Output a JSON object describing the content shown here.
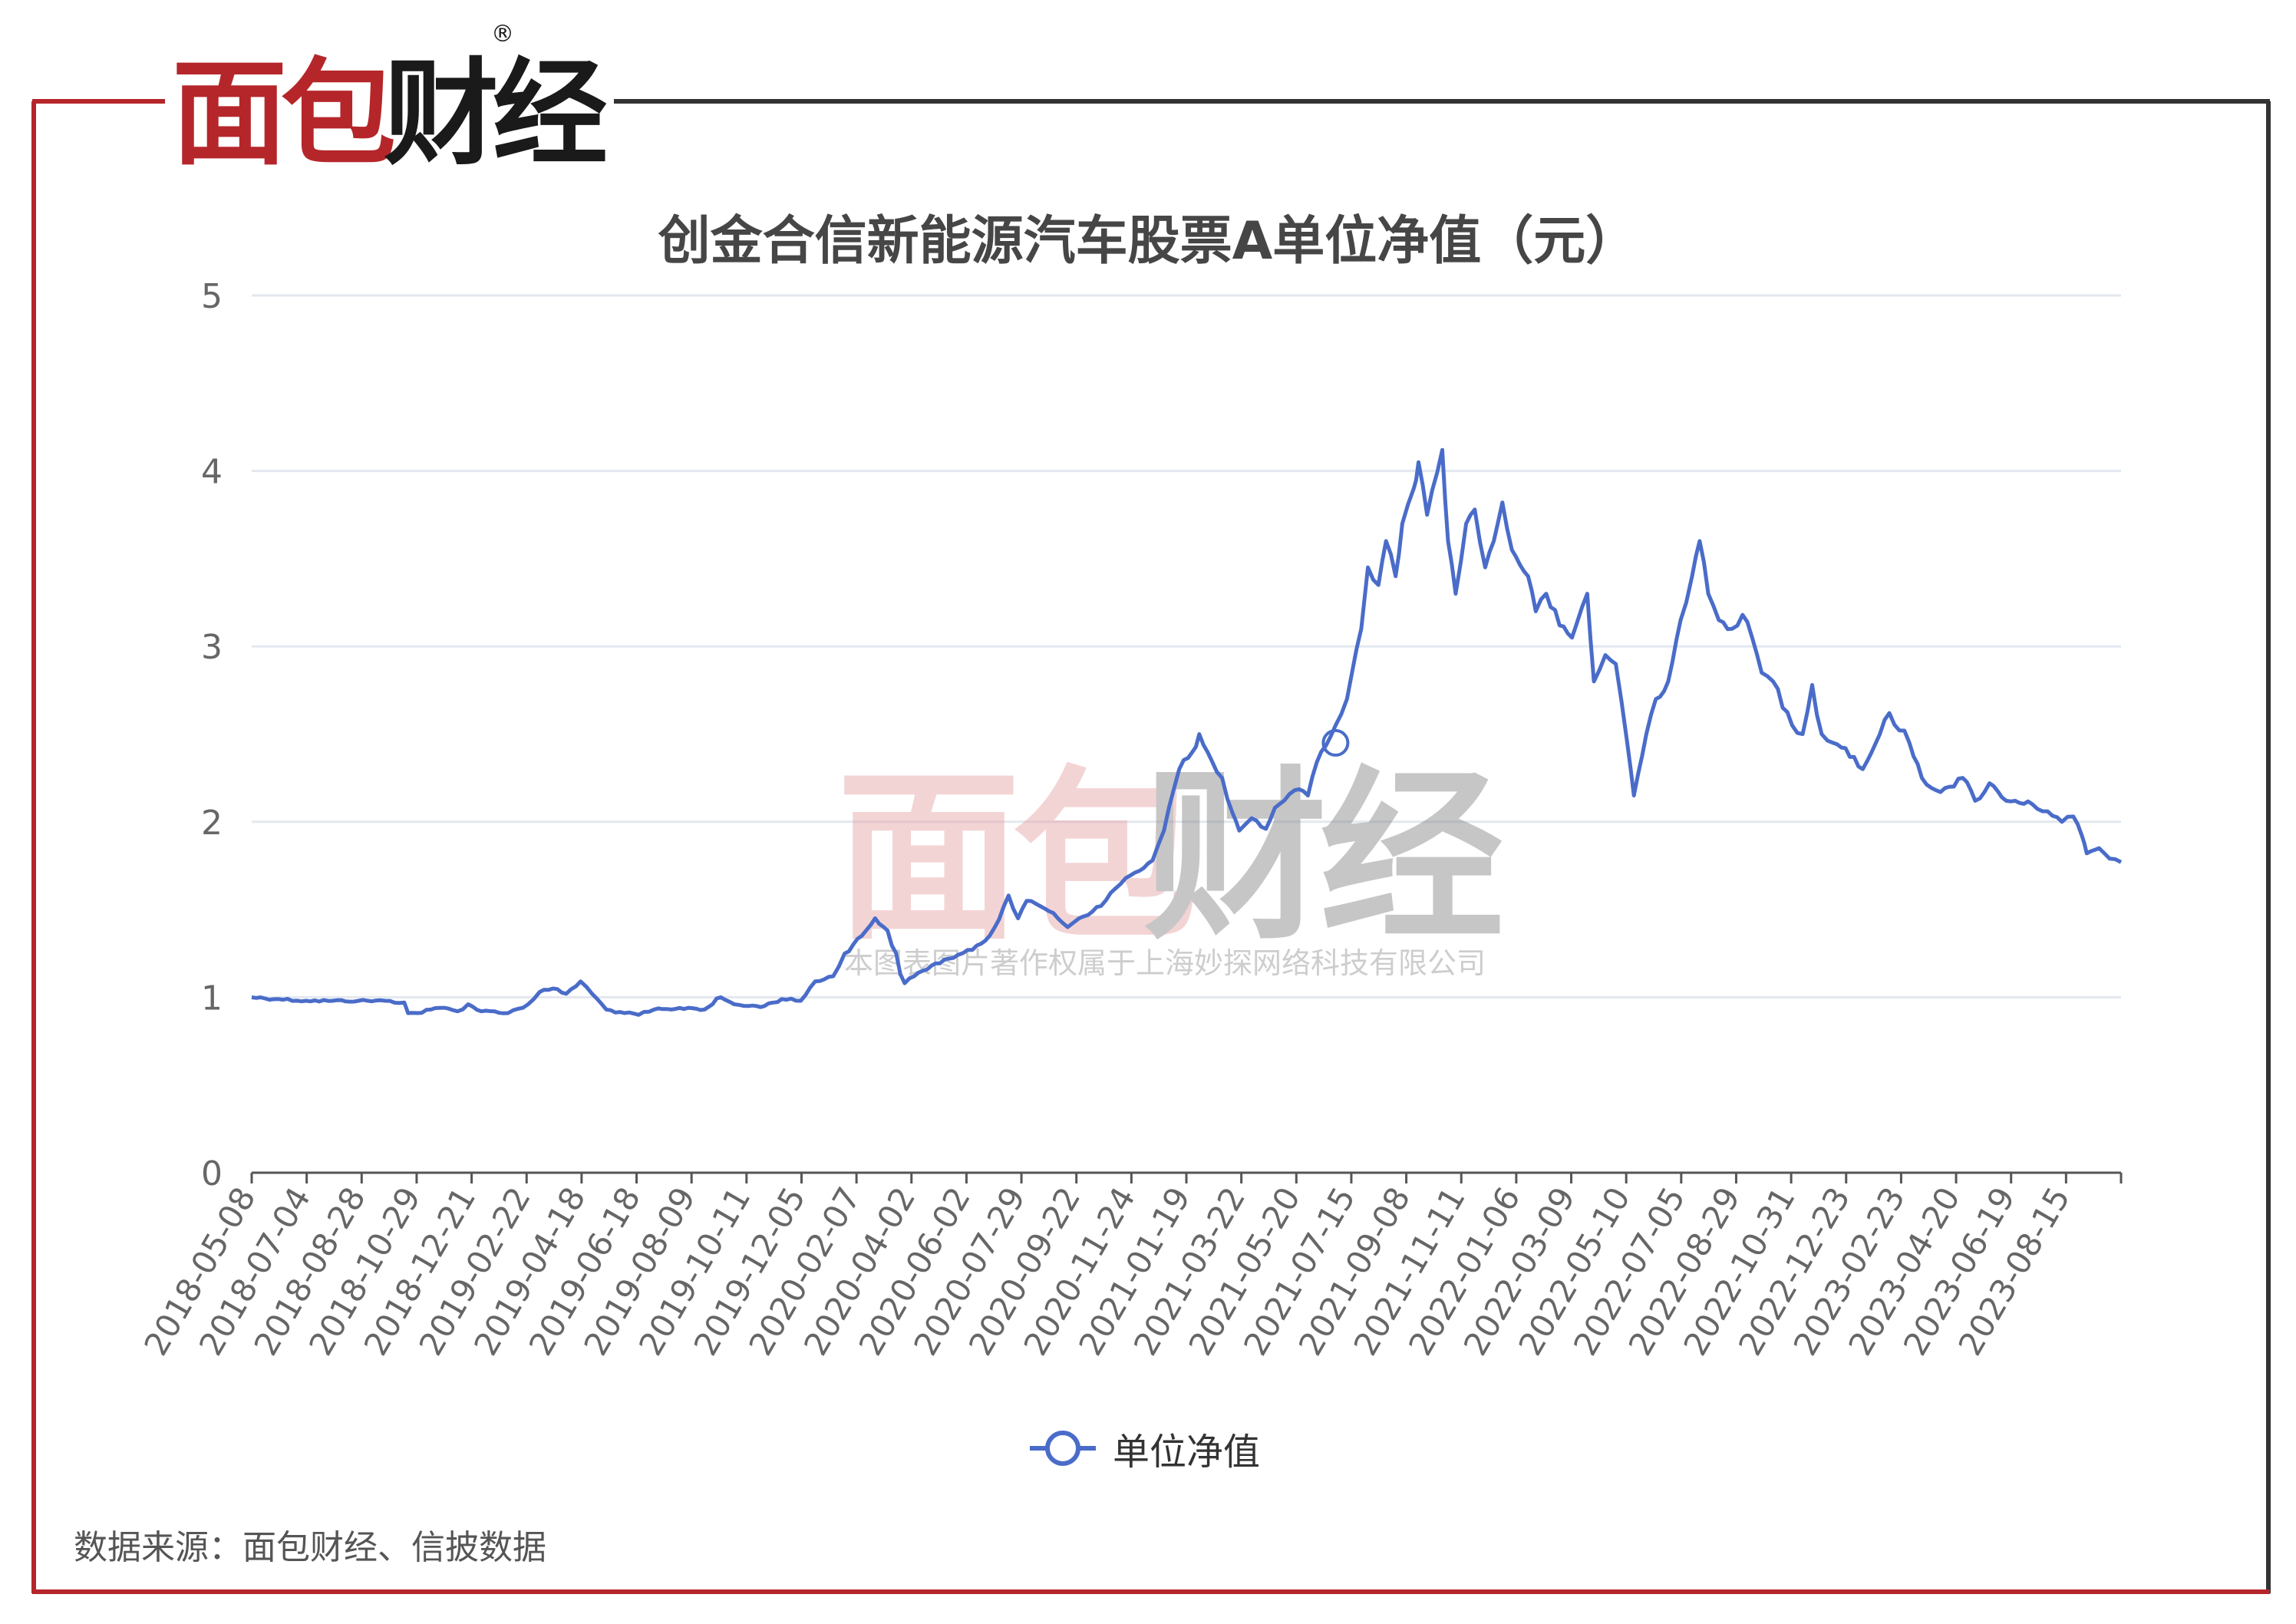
{
  "logo": {
    "text": "面包财经",
    "registered_mark": "®",
    "colors": {
      "red": "#b5262b",
      "black": "#1a1a1a"
    }
  },
  "watermark": {
    "logo_text": "面包财经",
    "copyright": "本图表图片著作权属于上海妙探网络科技有限公司"
  },
  "source_note": "数据来源：面包财经、信披数据",
  "colors": {
    "line": "#4a6cc9",
    "grid": "#e3e8f0",
    "frame_red": "#b5262b",
    "frame_dark": "#333333",
    "axis_text": "#666666"
  },
  "chart_data": {
    "type": "line",
    "title": "创金合信新能源汽车股票A单位净值（元）",
    "xlabel": "",
    "ylabel": "",
    "ylim": [
      0,
      5
    ],
    "yticks": [
      0,
      1,
      2,
      3,
      4,
      5
    ],
    "grid": true,
    "legend_position": "bottom-center",
    "xticks": [
      "2018-05-08",
      "2018-07-04",
      "2018-08-28",
      "2018-10-29",
      "2018-12-21",
      "2019-02-22",
      "2019-04-18",
      "2019-06-18",
      "2019-08-09",
      "2019-10-11",
      "2019-12-05",
      "2020-02-07",
      "2020-04-02",
      "2020-06-02",
      "2020-07-29",
      "2020-09-22",
      "2020-11-24",
      "2021-01-19",
      "2021-03-22",
      "2021-05-20",
      "2021-07-15",
      "2021-09-08",
      "2021-11-11",
      "2022-01-06",
      "2022-03-09",
      "2022-05-10",
      "2022-07-05",
      "2022-08-29",
      "2022-10-31",
      "2022-12-23",
      "2023-02-23",
      "2023-04-20",
      "2023-06-19",
      "2023-08-15"
    ],
    "series": [
      {
        "name": "单位净值",
        "points": [
          [
            "2018-05-08",
            1.0
          ],
          [
            "2018-06-05",
            0.99
          ],
          [
            "2018-07-04",
            0.98
          ],
          [
            "2018-08-01",
            0.98
          ],
          [
            "2018-08-28",
            0.98
          ],
          [
            "2018-09-25",
            0.98
          ],
          [
            "2018-10-15",
            0.97
          ],
          [
            "2018-10-19",
            0.91
          ],
          [
            "2018-10-29",
            0.91
          ],
          [
            "2018-11-12",
            0.93
          ],
          [
            "2018-11-26",
            0.94
          ],
          [
            "2018-12-10",
            0.92
          ],
          [
            "2018-12-21",
            0.96
          ],
          [
            "2019-01-04",
            0.92
          ],
          [
            "2019-01-18",
            0.92
          ],
          [
            "2019-02-01",
            0.91
          ],
          [
            "2019-02-22",
            0.96
          ],
          [
            "2019-03-06",
            1.03
          ],
          [
            "2019-03-20",
            1.05
          ],
          [
            "2019-04-03",
            1.02
          ],
          [
            "2019-04-18",
            1.09
          ],
          [
            "2019-04-30",
            1.02
          ],
          [
            "2019-05-15",
            0.93
          ],
          [
            "2019-06-03",
            0.91
          ],
          [
            "2019-06-18",
            0.9
          ],
          [
            "2019-07-04",
            0.93
          ],
          [
            "2019-07-22",
            0.93
          ],
          [
            "2019-08-09",
            0.94
          ],
          [
            "2019-08-26",
            0.93
          ],
          [
            "2019-09-12",
            1.0
          ],
          [
            "2019-09-26",
            0.96
          ],
          [
            "2019-10-11",
            0.95
          ],
          [
            "2019-10-28",
            0.95
          ],
          [
            "2019-11-15",
            0.99
          ],
          [
            "2019-12-05",
            0.98
          ],
          [
            "2019-12-20",
            1.09
          ],
          [
            "2020-01-08",
            1.12
          ],
          [
            "2020-01-20",
            1.25
          ],
          [
            "2020-02-07",
            1.35
          ],
          [
            "2020-02-21",
            1.45
          ],
          [
            "2020-03-05",
            1.38
          ],
          [
            "2020-03-23",
            1.08
          ],
          [
            "2020-04-02",
            1.12
          ],
          [
            "2020-04-20",
            1.18
          ],
          [
            "2020-05-08",
            1.22
          ],
          [
            "2020-06-02",
            1.27
          ],
          [
            "2020-06-20",
            1.35
          ],
          [
            "2020-07-10",
            1.58
          ],
          [
            "2020-07-20",
            1.45
          ],
          [
            "2020-07-29",
            1.55
          ],
          [
            "2020-08-12",
            1.52
          ],
          [
            "2020-08-26",
            1.48
          ],
          [
            "2020-09-10",
            1.4
          ],
          [
            "2020-09-22",
            1.45
          ],
          [
            "2020-10-15",
            1.52
          ],
          [
            "2020-10-30",
            1.62
          ],
          [
            "2020-11-10",
            1.68
          ],
          [
            "2020-11-24",
            1.72
          ],
          [
            "2020-12-08",
            1.78
          ],
          [
            "2020-12-20",
            1.95
          ],
          [
            "2021-01-05",
            2.3
          ],
          [
            "2021-01-19",
            2.4
          ],
          [
            "2021-01-26",
            2.5
          ],
          [
            "2021-02-08",
            2.35
          ],
          [
            "2021-02-19",
            2.25
          ],
          [
            "2021-03-02",
            2.05
          ],
          [
            "2021-03-09",
            1.95
          ],
          [
            "2021-03-22",
            2.02
          ],
          [
            "2021-04-06",
            1.96
          ],
          [
            "2021-04-20",
            2.1
          ],
          [
            "2021-05-06",
            2.18
          ],
          [
            "2021-05-20",
            2.15
          ],
          [
            "2021-06-03",
            2.4
          ],
          [
            "2021-06-18",
            2.55
          ],
          [
            "2021-06-30",
            2.7
          ],
          [
            "2021-07-15",
            3.1
          ],
          [
            "2021-07-22",
            3.45
          ],
          [
            "2021-08-02",
            3.35
          ],
          [
            "2021-08-10",
            3.6
          ],
          [
            "2021-08-20",
            3.4
          ],
          [
            "2021-08-27",
            3.7
          ],
          [
            "2021-09-08",
            3.9
          ],
          [
            "2021-09-13",
            4.05
          ],
          [
            "2021-09-22",
            3.75
          ],
          [
            "2021-10-08",
            4.12
          ],
          [
            "2021-10-14",
            3.6
          ],
          [
            "2021-10-22",
            3.3
          ],
          [
            "2021-11-02",
            3.7
          ],
          [
            "2021-11-11",
            3.78
          ],
          [
            "2021-11-22",
            3.45
          ],
          [
            "2021-12-01",
            3.6
          ],
          [
            "2021-12-10",
            3.82
          ],
          [
            "2021-12-20",
            3.55
          ],
          [
            "2022-01-06",
            3.4
          ],
          [
            "2022-01-14",
            3.2
          ],
          [
            "2022-01-25",
            3.3
          ],
          [
            "2022-02-08",
            3.12
          ],
          [
            "2022-02-21",
            3.05
          ],
          [
            "2022-03-09",
            3.3
          ],
          [
            "2022-03-16",
            2.8
          ],
          [
            "2022-03-28",
            2.95
          ],
          [
            "2022-04-08",
            2.9
          ],
          [
            "2022-04-20",
            2.45
          ],
          [
            "2022-04-27",
            2.15
          ],
          [
            "2022-05-10",
            2.5
          ],
          [
            "2022-05-20",
            2.7
          ],
          [
            "2022-06-02",
            2.8
          ],
          [
            "2022-06-15",
            3.15
          ],
          [
            "2022-06-27",
            3.4
          ],
          [
            "2022-07-05",
            3.6
          ],
          [
            "2022-07-14",
            3.3
          ],
          [
            "2022-07-25",
            3.15
          ],
          [
            "2022-08-08",
            3.1
          ],
          [
            "2022-08-19",
            3.18
          ],
          [
            "2022-08-29",
            3.05
          ],
          [
            "2022-09-08",
            2.85
          ],
          [
            "2022-09-20",
            2.8
          ],
          [
            "2022-10-10",
            2.55
          ],
          [
            "2022-10-21",
            2.5
          ],
          [
            "2022-10-31",
            2.78
          ],
          [
            "2022-11-10",
            2.5
          ],
          [
            "2022-11-22",
            2.45
          ],
          [
            "2022-12-05",
            2.42
          ],
          [
            "2022-12-23",
            2.3
          ],
          [
            "2023-01-10",
            2.5
          ],
          [
            "2023-01-20",
            2.62
          ],
          [
            "2023-02-10",
            2.45
          ],
          [
            "2023-02-23",
            2.25
          ],
          [
            "2023-03-10",
            2.18
          ],
          [
            "2023-03-24",
            2.2
          ],
          [
            "2023-04-07",
            2.25
          ],
          [
            "2023-04-20",
            2.12
          ],
          [
            "2023-05-05",
            2.22
          ],
          [
            "2023-05-18",
            2.14
          ],
          [
            "2023-06-01",
            2.12
          ],
          [
            "2023-06-19",
            2.1
          ],
          [
            "2023-07-05",
            2.06
          ],
          [
            "2023-07-20",
            2.0
          ],
          [
            "2023-08-01",
            2.03
          ],
          [
            "2023-08-10",
            1.92
          ],
          [
            "2023-08-15",
            1.82
          ],
          [
            "2023-08-28",
            1.85
          ],
          [
            "2023-09-08",
            1.79
          ],
          [
            "2023-09-20",
            1.77
          ]
        ]
      }
    ]
  }
}
